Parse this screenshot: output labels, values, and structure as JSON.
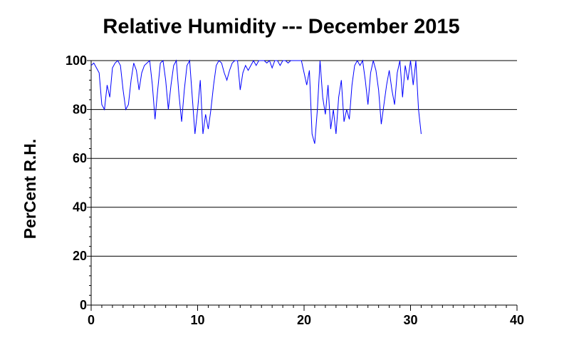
{
  "chart_data": {
    "type": "line",
    "title": "Relative Humidity --- December 2015",
    "y_label": "PerCent R.H.",
    "xlim": [
      0,
      40
    ],
    "xticks": [
      0,
      10,
      20,
      30,
      40
    ],
    "ylim": [
      0,
      100
    ],
    "yticks": [
      0,
      20,
      40,
      60,
      80,
      100
    ],
    "x_minor_ticks": [
      1,
      2,
      3,
      4,
      5,
      6,
      7,
      8,
      9,
      11,
      12,
      13,
      14,
      15,
      16,
      17,
      18,
      19,
      21,
      22,
      23,
      24,
      25,
      26,
      27,
      28,
      29,
      31,
      32,
      33,
      34,
      35,
      36,
      37,
      38,
      39
    ],
    "y_minor_ticks": [
      4,
      8,
      12,
      16,
      24,
      28,
      32,
      36,
      44,
      48,
      52,
      56,
      64,
      68,
      72,
      76,
      84,
      88,
      92,
      96
    ],
    "grid": true,
    "series": [
      {
        "name": "Relative Humidity",
        "color": "#0000ff",
        "x": [
          0,
          0.25,
          0.5,
          0.75,
          1,
          1.25,
          1.5,
          1.75,
          2,
          2.25,
          2.5,
          2.75,
          3,
          3.25,
          3.5,
          3.75,
          4,
          4.25,
          4.5,
          4.75,
          5,
          5.25,
          5.5,
          5.75,
          6,
          6.25,
          6.5,
          6.75,
          7,
          7.25,
          7.5,
          7.75,
          8,
          8.25,
          8.5,
          8.75,
          9,
          9.25,
          9.5,
          9.75,
          10,
          10.25,
          10.5,
          10.75,
          11,
          11.25,
          11.5,
          11.75,
          12,
          12.25,
          12.5,
          12.75,
          13,
          13.25,
          13.5,
          13.75,
          14,
          14.25,
          14.5,
          14.75,
          15,
          15.25,
          15.5,
          15.75,
          16,
          16.25,
          16.5,
          16.75,
          17,
          17.25,
          17.5,
          17.75,
          18,
          18.25,
          18.5,
          18.75,
          19,
          19.25,
          19.5,
          19.75,
          20,
          20.25,
          20.5,
          20.75,
          21,
          21.25,
          21.5,
          21.75,
          22,
          22.25,
          22.5,
          22.75,
          23,
          23.25,
          23.5,
          23.75,
          24,
          24.25,
          24.5,
          24.75,
          25,
          25.25,
          25.5,
          25.75,
          26,
          26.25,
          26.5,
          26.75,
          27,
          27.25,
          27.5,
          27.75,
          28,
          28.25,
          28.5,
          28.75,
          29,
          29.25,
          29.5,
          29.75,
          30,
          30.25,
          30.5,
          30.75,
          31
        ],
        "values": [
          98,
          99,
          97,
          95,
          82,
          80,
          90,
          85,
          97,
          99,
          100,
          98,
          88,
          80,
          82,
          92,
          99,
          96,
          88,
          95,
          98,
          99,
          100,
          90,
          76,
          88,
          99,
          100,
          92,
          80,
          90,
          98,
          100,
          86,
          75,
          88,
          98,
          100,
          85,
          70,
          80,
          92,
          70,
          78,
          72,
          80,
          90,
          98,
          100,
          99,
          95,
          92,
          96,
          99,
          100,
          100,
          88,
          95,
          98,
          96,
          98,
          100,
          98,
          100,
          100,
          100,
          99,
          100,
          97,
          100,
          100,
          98,
          100,
          100,
          99,
          100,
          100,
          100,
          100,
          100,
          95,
          90,
          96,
          70,
          66,
          80,
          100,
          85,
          78,
          90,
          72,
          80,
          70,
          85,
          92,
          75,
          80,
          76,
          90,
          98,
          100,
          98,
          100,
          92,
          82,
          95,
          100,
          96,
          88,
          74,
          82,
          90,
          96,
          88,
          82,
          95,
          100,
          85,
          98,
          92,
          100,
          90,
          100,
          80,
          70
        ]
      }
    ]
  }
}
